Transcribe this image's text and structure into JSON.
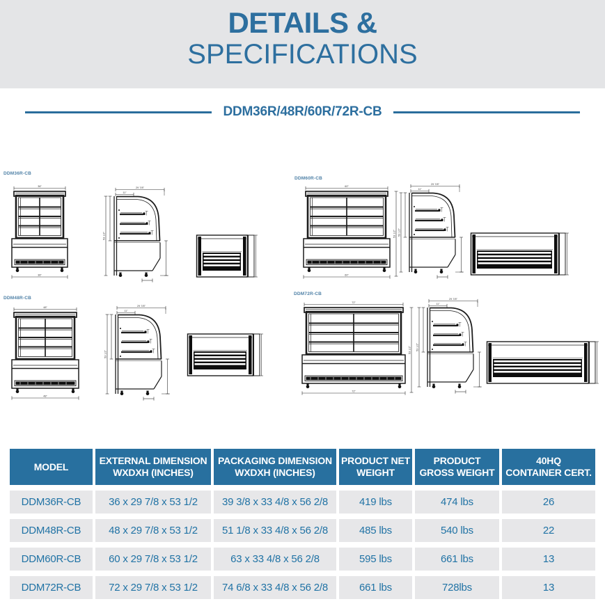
{
  "header": {
    "title_line1": "DETAILS &",
    "title_line2": "SPECIFICATIONS",
    "model_series": "DDM36R/48R/60R/72R-CB"
  },
  "colors": {
    "accent_blue": "#2d6f9f",
    "divider_blue": "#2a6d9c",
    "table_header_bg": "#28709f",
    "table_row_bg": "#e7e7e9",
    "table_text_blue": "#2173a5",
    "hero_bg": "#e4e5e7",
    "drawing_label_blue": "#4e80a6"
  },
  "drawings": {
    "groups": [
      {
        "label": "DDM36R-CB",
        "width_label": "36\"",
        "depth_label": "29 7/8\"",
        "height_label": "53 1/2\"",
        "top_shelf_label": "11\""
      },
      {
        "label": "DDM60R-CB",
        "width_label": "60\"",
        "depth_label": "29 7/8\"",
        "height_label": "53 1/2\"",
        "top_shelf_label": "11\""
      },
      {
        "label": "DDM48R-CB",
        "width_label": "48\"",
        "depth_label": "29 7/8\"",
        "height_label": "53 1/2\"",
        "top_shelf_label": "11\""
      },
      {
        "label": "DDM72R-CB",
        "width_label": "72\"",
        "depth_label": "29 7/8\"",
        "height_label": "53 1/2\"",
        "top_shelf_label": "11\""
      }
    ]
  },
  "table": {
    "columns": [
      "MODEL",
      "EXTERNAL DIMENSION\nWXDXH (INCHES)",
      "PACKAGING DIMENSION\nWXDXH (INCHES)",
      "PRODUCT NET\nWEIGHT",
      "PRODUCT\nGROSS WEIGHT",
      "40HQ\nCONTAINER CERT."
    ],
    "rows": [
      [
        "DDM36R-CB",
        "36 x 29 7/8 x 53 1/2",
        "39 3/8 x 33 4/8 x 56 2/8",
        "419 lbs",
        "474 lbs",
        "26"
      ],
      [
        "DDM48R-CB",
        "48 x 29 7/8 x 53 1/2",
        "51 1/8 x 33 4/8 x 56 2/8",
        "485 lbs",
        "540 lbs",
        "22"
      ],
      [
        "DDM60R-CB",
        "60 x 29 7/8 x 53 1/2",
        "63 x 33 4/8 x 56 2/8",
        "595 lbs",
        "661 lbs",
        "13"
      ],
      [
        "DDM72R-CB",
        "72 x 29 7/8 x 53 1/2",
        "74 6/8 x 33 4/8 x 56 2/8",
        "661 lbs",
        "728lbs",
        "13"
      ]
    ]
  }
}
